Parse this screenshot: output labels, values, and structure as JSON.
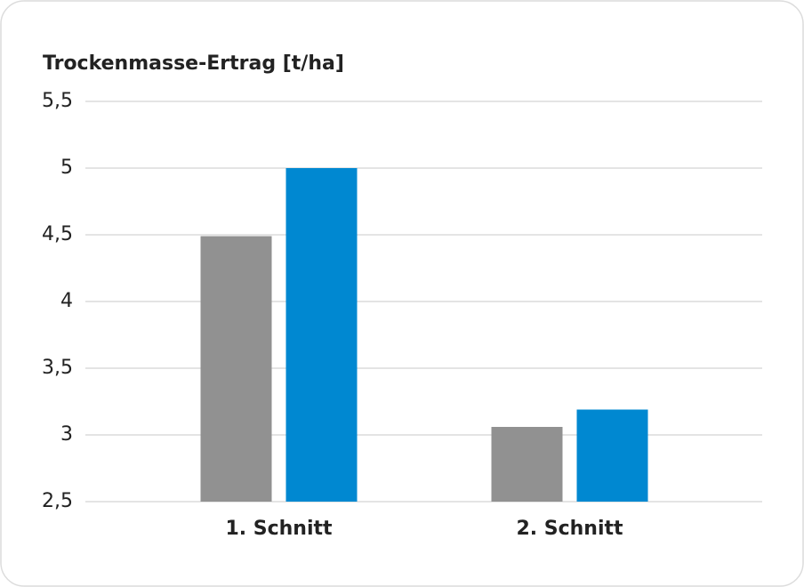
{
  "chart_data": {
    "type": "bar",
    "title": "Trockenmasse-Ertrag [t/ha]",
    "categories": [
      "1. Schnitt",
      "2. Schnitt"
    ],
    "series": [
      {
        "color": "#919191",
        "values": [
          4.49,
          3.06
        ]
      },
      {
        "color": "#0088d1",
        "values": [
          5.0,
          3.19
        ]
      }
    ],
    "ylim": [
      2.5,
      5.5
    ],
    "yticks": [
      {
        "value": 2.5,
        "label": "2,5"
      },
      3,
      {
        "value": 3.5,
        "label": "3,5"
      },
      4,
      {
        "value": 4.5,
        "label": "4,5"
      },
      5,
      {
        "value": 5.5,
        "label": "5,5"
      }
    ],
    "grid": true
  }
}
